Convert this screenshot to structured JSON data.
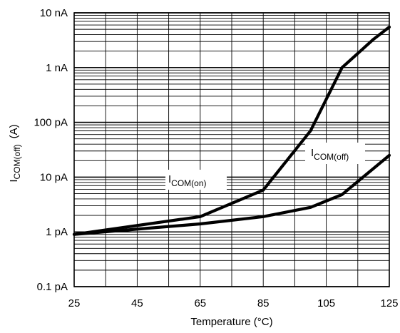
{
  "chart_data": {
    "type": "line",
    "title": "",
    "xlabel": "Temperature (°C)",
    "ylabel": {
      "main": "I",
      "sub": "COM(off)",
      "unit": "(A)"
    },
    "x_ticks": [
      25,
      45,
      65,
      85,
      105,
      125
    ],
    "x_tick_labels": [
      "25",
      "45",
      "65",
      "85",
      "105",
      "125"
    ],
    "xlim": [
      25,
      125
    ],
    "y_scale": "log",
    "ylim": [
      1e-13,
      1e-08
    ],
    "y_ticks": [
      1e-13,
      1e-12,
      1e-11,
      1e-10,
      1e-09,
      1e-08
    ],
    "y_tick_labels": [
      "0.1 pA",
      "1 pA",
      "10 pA",
      "100 pA",
      "1 nA",
      "10 nA"
    ],
    "grid": true,
    "series": [
      {
        "name": "I_COM(on)",
        "label_main": "I",
        "label_sub": "COM(on)",
        "x": [
          25,
          65,
          85,
          100,
          110,
          120,
          125
        ],
        "y": [
          9e-13,
          1.9e-12,
          5.8e-12,
          7e-11,
          1e-09,
          3.3e-09,
          5.5e-09
        ]
      },
      {
        "name": "I_COM(off)",
        "label_main": "I",
        "label_sub": "COM(off)",
        "x": [
          25,
          65,
          85,
          100,
          110,
          125
        ],
        "y": [
          9e-13,
          1.4e-12,
          1.9e-12,
          2.8e-12,
          4.8e-12,
          2.5e-11
        ]
      }
    ]
  }
}
